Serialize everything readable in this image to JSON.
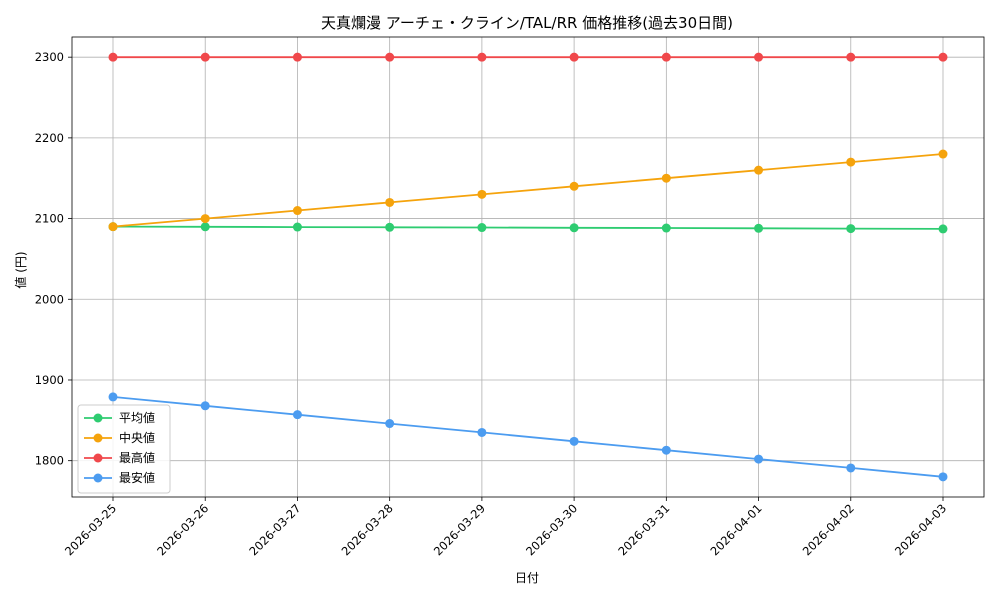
{
  "chart_data": {
    "type": "line",
    "title": "天真爛漫 アーチェ・クライン/TAL/RR 価格推移(過去30日間)",
    "xlabel": "日付",
    "ylabel": "値 (円)",
    "categories": [
      "2026-03-25",
      "2026-03-26",
      "2026-03-27",
      "2026-03-28",
      "2026-03-29",
      "2026-03-30",
      "2026-03-31",
      "2026-04-01",
      "2026-04-02",
      "2026-04-03"
    ],
    "ylim": [
      1755,
      2325
    ],
    "yticks": [
      1800,
      1900,
      2000,
      2100,
      2200,
      2300
    ],
    "grid": true,
    "legend_position": "lower-left",
    "series": [
      {
        "name": "平均値",
        "color": "#2ecc71",
        "values": [
          2090,
          2089.8,
          2089.5,
          2089.2,
          2088.9,
          2088.6,
          2088.3,
          2088,
          2087.6,
          2087.2
        ]
      },
      {
        "name": "中央値",
        "color": "#f5a30c",
        "values": [
          2090,
          2100,
          2110,
          2120,
          2130,
          2140,
          2150,
          2160,
          2170,
          2180
        ]
      },
      {
        "name": "最高値",
        "color": "#f0484b",
        "values": [
          2300,
          2300,
          2300,
          2300,
          2300,
          2300,
          2300,
          2300,
          2300,
          2300
        ]
      },
      {
        "name": "最安値",
        "color": "#4c9cf0",
        "values": [
          1879,
          1868,
          1857,
          1846,
          1835,
          1824,
          1813,
          1802,
          1791,
          1780
        ]
      }
    ]
  }
}
